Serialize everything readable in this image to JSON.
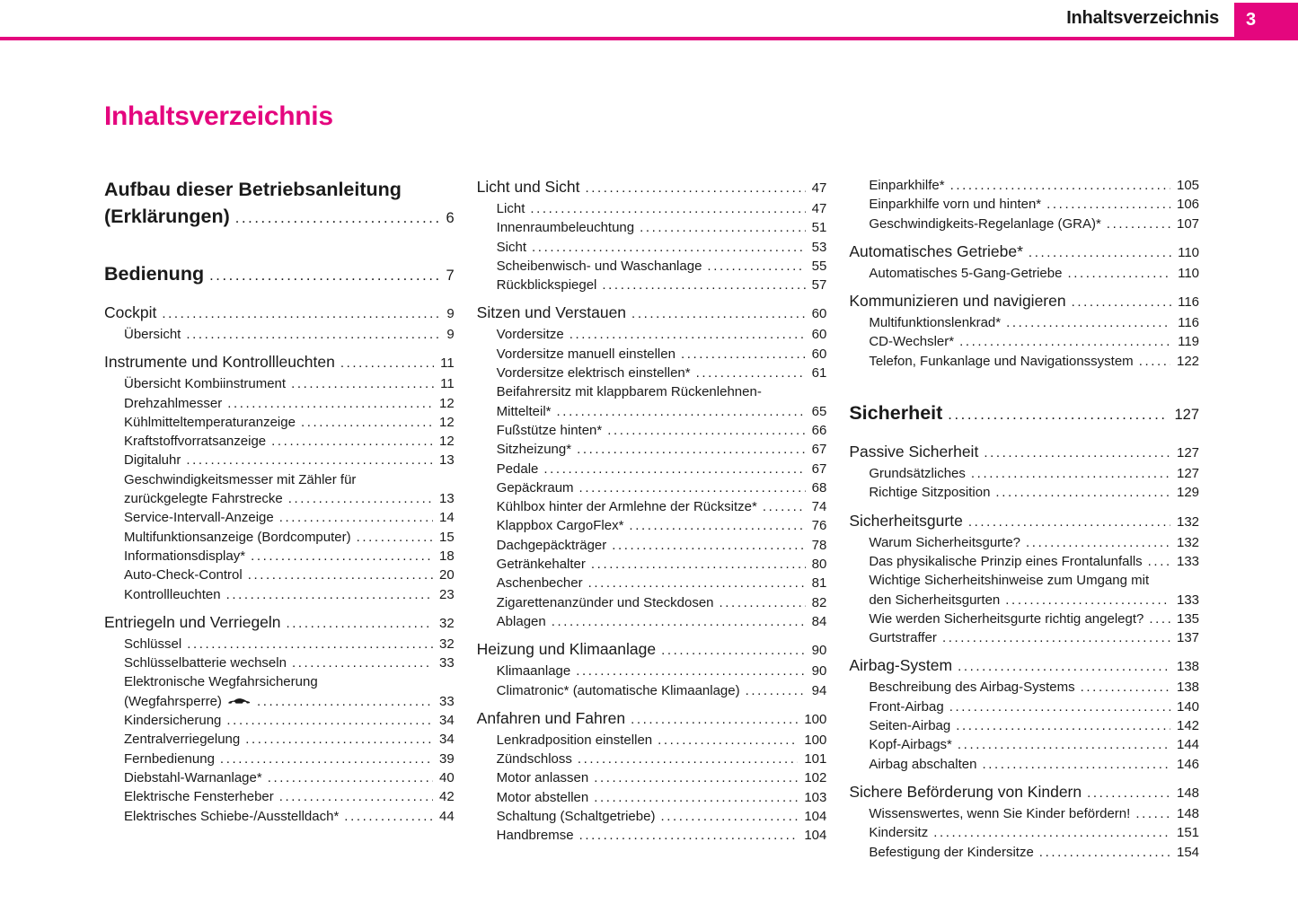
{
  "header": {
    "title": "Inhaltsverzeichnis",
    "page_number": "3"
  },
  "page_title": "Inhaltsverzeichnis",
  "colors": {
    "accent": "#E4067E",
    "text": "#1a1a1a"
  },
  "toc": {
    "columns": [
      [
        {
          "label": "Aufbau dieser Betriebsanleitung",
          "level": "chapter",
          "wrap": true
        },
        {
          "label": "(Erklärungen)",
          "page": "6",
          "level": "chapter",
          "cont": true
        },
        {
          "label": "Bedienung",
          "page": "7",
          "level": "chapter",
          "gap": "lg"
        },
        {
          "label": "Cockpit",
          "page": "9",
          "level": "section",
          "gap": "md"
        },
        {
          "label": "Übersicht",
          "page": "9",
          "level": "sub"
        },
        {
          "label": "Instrumente und Kontrollleuchten",
          "page": "11",
          "level": "section",
          "gap": "sm"
        },
        {
          "label": "Übersicht Kombiinstrument",
          "page": "11",
          "level": "sub"
        },
        {
          "label": "Drehzahlmesser",
          "page": "12",
          "level": "sub"
        },
        {
          "label": "Kühlmitteltemperaturanzeige",
          "page": "12",
          "level": "sub"
        },
        {
          "label": "Kraftstoffvorratsanzeige",
          "page": "12",
          "level": "sub"
        },
        {
          "label": "Digitaluhr",
          "page": "13",
          "level": "sub"
        },
        {
          "label": "Geschwindigkeitsmesser mit Zähler für",
          "level": "sub",
          "wrap": true
        },
        {
          "label": "zurückgelegte Fahrstrecke",
          "page": "13",
          "level": "sub",
          "cont": true
        },
        {
          "label": "Service-Intervall-Anzeige",
          "page": "14",
          "level": "sub"
        },
        {
          "label": "Multifunktionsanzeige (Bordcomputer)",
          "page": "15",
          "level": "sub"
        },
        {
          "label": "Informationsdisplay*",
          "page": "18",
          "level": "sub"
        },
        {
          "label": "Auto-Check-Control",
          "page": "20",
          "level": "sub"
        },
        {
          "label": "Kontrollleuchten",
          "page": "23",
          "level": "sub"
        },
        {
          "label": "Entriegeln und Verriegeln",
          "page": "32",
          "level": "section",
          "gap": "sm"
        },
        {
          "label": "Schlüssel",
          "page": "32",
          "level": "sub"
        },
        {
          "label": "Schlüsselbatterie wechseln",
          "page": "33",
          "level": "sub"
        },
        {
          "label": "Elektronische Wegfahrsicherung",
          "level": "sub",
          "wrap": true
        },
        {
          "label": "(Wegfahrsperre)",
          "page": "33",
          "level": "sub",
          "cont": true,
          "icon": "car-icon"
        },
        {
          "label": "Kindersicherung",
          "page": "34",
          "level": "sub"
        },
        {
          "label": "Zentralverriegelung",
          "page": "34",
          "level": "sub"
        },
        {
          "label": "Fernbedienung",
          "page": "39",
          "level": "sub"
        },
        {
          "label": "Diebstahl-Warnanlage*",
          "page": "40",
          "level": "sub"
        },
        {
          "label": "Elektrische Fensterheber",
          "page": "42",
          "level": "sub"
        },
        {
          "label": "Elektrisches Schiebe-/Ausstelldach*",
          "page": "44",
          "level": "sub"
        }
      ],
      [
        {
          "label": "Licht und Sicht",
          "page": "47",
          "level": "section"
        },
        {
          "label": "Licht",
          "page": "47",
          "level": "sub"
        },
        {
          "label": "Innenraumbeleuchtung",
          "page": "51",
          "level": "sub"
        },
        {
          "label": "Sicht",
          "page": "53",
          "level": "sub"
        },
        {
          "label": "Scheibenwisch- und Waschanlage",
          "page": "55",
          "level": "sub"
        },
        {
          "label": "Rückblickspiegel",
          "page": "57",
          "level": "sub"
        },
        {
          "label": "Sitzen und Verstauen",
          "page": "60",
          "level": "section",
          "gap": "sm"
        },
        {
          "label": "Vordersitze",
          "page": "60",
          "level": "sub"
        },
        {
          "label": "Vordersitze manuell einstellen",
          "page": "60",
          "level": "sub"
        },
        {
          "label": "Vordersitze elektrisch einstellen*",
          "page": "61",
          "level": "sub"
        },
        {
          "label": "Beifahrersitz mit klappbarem Rückenlehnen-",
          "level": "sub",
          "wrap": true
        },
        {
          "label": "Mittelteil*",
          "page": "65",
          "level": "sub",
          "cont": true
        },
        {
          "label": "Fußstütze hinten*",
          "page": "66",
          "level": "sub"
        },
        {
          "label": "Sitzheizung*",
          "page": "67",
          "level": "sub"
        },
        {
          "label": "Pedale",
          "page": "67",
          "level": "sub"
        },
        {
          "label": "Gepäckraum",
          "page": "68",
          "level": "sub"
        },
        {
          "label": "Kühlbox hinter der Armlehne der Rücksitze*",
          "page": "74",
          "level": "sub"
        },
        {
          "label": "Klappbox CargoFlex*",
          "page": "76",
          "level": "sub"
        },
        {
          "label": "Dachgepäckträger",
          "page": "78",
          "level": "sub"
        },
        {
          "label": "Getränkehalter",
          "page": "80",
          "level": "sub"
        },
        {
          "label": "Aschenbecher",
          "page": "81",
          "level": "sub"
        },
        {
          "label": "Zigarettenanzünder und Steckdosen",
          "page": "82",
          "level": "sub"
        },
        {
          "label": "Ablagen",
          "page": "84",
          "level": "sub"
        },
        {
          "label": "Heizung und Klimaanlage",
          "page": "90",
          "level": "section",
          "gap": "sm"
        },
        {
          "label": "Klimaanlage",
          "page": "90",
          "level": "sub"
        },
        {
          "label": "Climatronic* (automatische Klimaanlage)",
          "page": "94",
          "level": "sub"
        },
        {
          "label": "Anfahren und Fahren",
          "page": "100",
          "level": "section",
          "gap": "sm"
        },
        {
          "label": "Lenkradposition einstellen",
          "page": "100",
          "level": "sub"
        },
        {
          "label": "Zündschloss",
          "page": "101",
          "level": "sub"
        },
        {
          "label": "Motor anlassen",
          "page": "102",
          "level": "sub"
        },
        {
          "label": "Motor abstellen",
          "page": "103",
          "level": "sub"
        },
        {
          "label": "Schaltung (Schaltgetriebe)",
          "page": "104",
          "level": "sub"
        },
        {
          "label": "Handbremse",
          "page": "104",
          "level": "sub"
        }
      ],
      [
        {
          "label": "Einparkhilfe*",
          "page": "105",
          "level": "sub"
        },
        {
          "label": "Einparkhilfe vorn und hinten*",
          "page": "106",
          "level": "sub"
        },
        {
          "label": "Geschwindigkeits-Regelanlage (GRA)*",
          "page": "107",
          "level": "sub"
        },
        {
          "label": "Automatisches Getriebe*",
          "page": "110",
          "level": "section",
          "gap": "sm"
        },
        {
          "label": "Automatisches 5-Gang-Getriebe",
          "page": "110",
          "level": "sub"
        },
        {
          "label": "Kommunizieren und navigieren",
          "page": "116",
          "level": "section",
          "gap": "sm"
        },
        {
          "label": "Multifunktionslenkrad*",
          "page": "116",
          "level": "sub"
        },
        {
          "label": "CD-Wechsler*",
          "page": "119",
          "level": "sub"
        },
        {
          "label": "Telefon, Funkanlage und Navigationssystem",
          "page": "122",
          "level": "sub"
        },
        {
          "label": "Sicherheit",
          "page": "127",
          "level": "chapter",
          "gap": "lg"
        },
        {
          "label": "Passive Sicherheit",
          "page": "127",
          "level": "section",
          "gap": "md"
        },
        {
          "label": "Grundsätzliches",
          "page": "127",
          "level": "sub"
        },
        {
          "label": "Richtige Sitzposition",
          "page": "129",
          "level": "sub"
        },
        {
          "label": "Sicherheitsgurte",
          "page": "132",
          "level": "section",
          "gap": "sm"
        },
        {
          "label": "Warum Sicherheitsgurte?",
          "page": "132",
          "level": "sub"
        },
        {
          "label": "Das physikalische Prinzip eines Frontalunfalls",
          "page": "133",
          "level": "sub"
        },
        {
          "label": "Wichtige Sicherheitshinweise zum Umgang mit",
          "level": "sub",
          "wrap": true
        },
        {
          "label": "den Sicherheitsgurten",
          "page": "133",
          "level": "sub",
          "cont": true
        },
        {
          "label": "Wie werden Sicherheitsgurte richtig angelegt?",
          "page": "135",
          "level": "sub"
        },
        {
          "label": "Gurtstraffer",
          "page": "137",
          "level": "sub"
        },
        {
          "label": "Airbag-System",
          "page": "138",
          "level": "section",
          "gap": "sm"
        },
        {
          "label": "Beschreibung des Airbag-Systems",
          "page": "138",
          "level": "sub"
        },
        {
          "label": "Front-Airbag",
          "page": "140",
          "level": "sub"
        },
        {
          "label": "Seiten-Airbag",
          "page": "142",
          "level": "sub"
        },
        {
          "label": "Kopf-Airbags*",
          "page": "144",
          "level": "sub"
        },
        {
          "label": "Airbag abschalten",
          "page": "146",
          "level": "sub"
        },
        {
          "label": "Sichere Beförderung von Kindern",
          "page": "148",
          "level": "section",
          "gap": "sm"
        },
        {
          "label": "Wissenswertes, wenn Sie Kinder befördern!",
          "page": "148",
          "level": "sub"
        },
        {
          "label": "Kindersitz",
          "page": "151",
          "level": "sub"
        },
        {
          "label": "Befestigung der Kindersitze",
          "page": "154",
          "level": "sub"
        }
      ]
    ]
  }
}
